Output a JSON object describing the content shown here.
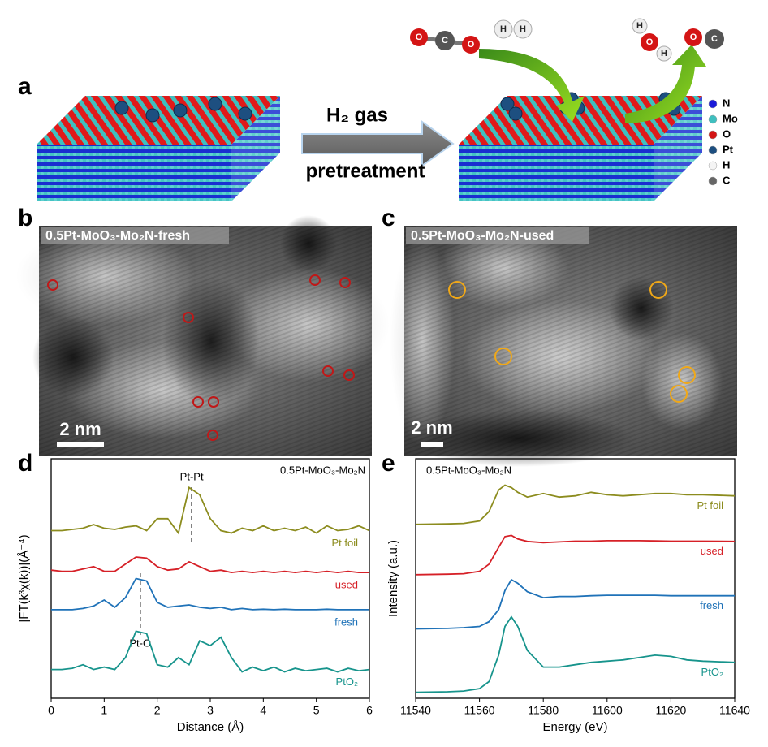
{
  "panels": {
    "a": {
      "label": "a",
      "arrow_top": "H₂ gas",
      "arrow_bottom": "pretreatment",
      "molecules": {
        "co2": [
          "O",
          "C",
          "O"
        ],
        "h2": [
          "H",
          "H"
        ],
        "h2o": [
          "H",
          "O",
          "H"
        ],
        "co": [
          "O",
          "C"
        ]
      },
      "legend": [
        "N",
        "Mo",
        "O",
        "Pt",
        "H",
        "C"
      ]
    },
    "b": {
      "label": "b",
      "caption": "0.5Pt-MoO₃-Mo₂N-fresh",
      "scale_bar": "2 nm"
    },
    "c": {
      "label": "c",
      "caption": "0.5Pt-MoO₃-Mo₂N-used",
      "scale_bar": "2 nm"
    }
  },
  "chart_data": [
    {
      "type": "line",
      "panel_label": "d",
      "title": "0.5Pt-MoO₃-Mo₂N",
      "x_label": "Distance (Å)",
      "y_label": "|FT(k³χ(k))|(Å⁻⁴)",
      "x": [
        0,
        0.2,
        0.4,
        0.6,
        0.8,
        1.0,
        1.2,
        1.4,
        1.6,
        1.8,
        2.0,
        2.2,
        2.4,
        2.6,
        2.8,
        3.0,
        3.2,
        3.4,
        3.6,
        3.8,
        4.0,
        4.2,
        4.4,
        4.6,
        4.8,
        5.0,
        5.2,
        5.4,
        5.6,
        5.8,
        6.0
      ],
      "xlim": [
        0,
        6
      ],
      "xticks": [
        0,
        1,
        2,
        3,
        4,
        5,
        6
      ],
      "ylim": [
        0,
        100
      ],
      "annotations": [
        {
          "text": "Pt-Pt",
          "x": 2.65
        },
        {
          "text": "Pt-O",
          "x": 1.68
        }
      ],
      "series": [
        {
          "name": "Pt foil",
          "color": "#8c8c1e",
          "values": [
            70,
            70,
            70.5,
            71,
            72.5,
            71,
            70.5,
            71.5,
            72,
            70,
            75,
            75,
            69,
            88,
            85,
            75,
            70,
            69,
            71,
            70,
            72,
            70,
            71,
            70,
            71.5,
            69,
            72,
            70,
            70.5,
            72,
            70
          ]
        },
        {
          "name": "used",
          "color": "#d62027",
          "values": [
            53.5,
            53,
            53,
            54,
            55,
            53,
            53,
            56,
            59,
            58.5,
            55,
            53.5,
            54,
            57,
            55,
            53,
            53.5,
            52.5,
            53,
            52.5,
            53,
            52.5,
            53,
            52.5,
            53,
            52.5,
            53,
            52.5,
            53,
            52.5,
            52.5
          ]
        },
        {
          "name": "fresh",
          "color": "#1f72b8",
          "values": [
            37,
            37,
            37,
            37.5,
            38.5,
            41,
            38,
            42,
            50,
            49,
            40,
            38,
            38.5,
            39,
            38,
            37.5,
            38,
            37,
            37.5,
            37,
            37.2,
            37,
            37.2,
            37,
            37,
            37,
            37.2,
            37,
            37,
            37,
            37
          ]
        },
        {
          "name": "PtO₂",
          "color": "#17948c",
          "values": [
            12,
            12,
            12.5,
            14,
            12,
            13,
            12,
            17,
            28,
            27,
            14,
            13,
            17,
            14,
            24,
            22,
            25.5,
            17,
            11,
            13,
            11.5,
            13,
            11,
            12.5,
            11.5,
            12,
            12.5,
            11,
            12.5,
            11.5,
            12
          ]
        }
      ]
    },
    {
      "type": "line",
      "panel_label": "e",
      "title": "0.5Pt-MoO₃-Mo₂N",
      "x_label": "Energy (eV)",
      "y_label": "Intensity (a.u.)",
      "x": [
        11540,
        11550,
        11555,
        11560,
        11563,
        11566,
        11568,
        11570,
        11572,
        11575,
        11580,
        11585,
        11590,
        11595,
        11600,
        11605,
        11610,
        11615,
        11620,
        11625,
        11630,
        11640
      ],
      "xlim": [
        11540,
        11640
      ],
      "xticks": [
        11540,
        11560,
        11580,
        11600,
        11620,
        11640
      ],
      "ylim": [
        0,
        100
      ],
      "series": [
        {
          "name": "Pt foil",
          "color": "#8c8c1e",
          "values": [
            72.6,
            72.8,
            73,
            74,
            78,
            87,
            89,
            88,
            86,
            84,
            85.5,
            84,
            84.5,
            86,
            85,
            84.5,
            85,
            85.5,
            85.5,
            85,
            85,
            84.5
          ]
        },
        {
          "name": "used",
          "color": "#d62027",
          "values": [
            51.6,
            51.8,
            52,
            53,
            56,
            63,
            67.5,
            68,
            66.5,
            65.5,
            65,
            65.3,
            65.6,
            65.6,
            65.8,
            65.8,
            65.8,
            65.7,
            65.6,
            65.6,
            65.6,
            65.5
          ]
        },
        {
          "name": "fresh",
          "color": "#1f72b8",
          "values": [
            29,
            29.2,
            29.5,
            30,
            32,
            37,
            45,
            49.5,
            48,
            44.5,
            42,
            42.5,
            42.5,
            42.8,
            43,
            43,
            43,
            43,
            42.8,
            42.8,
            42.8,
            42.8
          ]
        },
        {
          "name": "PtO₂",
          "color": "#17948c",
          "values": [
            2.5,
            2.7,
            3,
            4,
            7,
            18,
            30,
            34,
            30,
            20,
            13,
            13,
            14,
            15,
            15.5,
            16,
            17,
            18,
            17.5,
            16,
            15.5,
            15
          ]
        }
      ]
    }
  ]
}
